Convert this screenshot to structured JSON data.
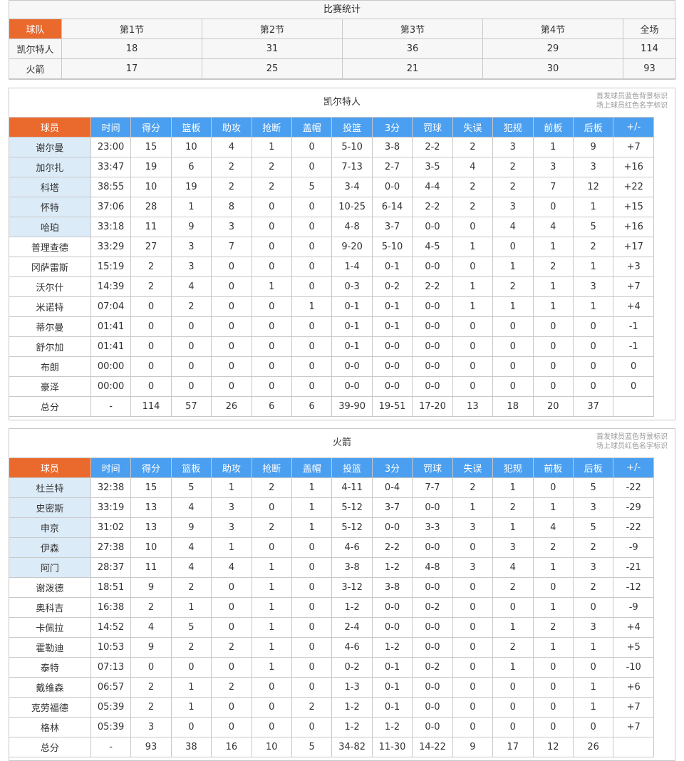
{
  "summary": {
    "title": "比赛统计",
    "headers": [
      "球队",
      "第1节",
      "第2节",
      "第3节",
      "第4节",
      "全场"
    ],
    "rows": [
      [
        "凯尔特人",
        "18",
        "31",
        "36",
        "29",
        "114"
      ],
      [
        "火箭",
        "17",
        "25",
        "21",
        "30",
        "93"
      ]
    ]
  },
  "legend": {
    "line1": "首发球员蓝色背景标识",
    "line2": "场上球员红色名字标识"
  },
  "columns": [
    "球员",
    "时间",
    "得分",
    "篮板",
    "助攻",
    "抢断",
    "盖帽",
    "投篮",
    "3分",
    "罚球",
    "失误",
    "犯规",
    "前板",
    "后板",
    "+/-"
  ],
  "colors": {
    "orange": "#ea6a2e",
    "blue": "#4b9ff0",
    "starter_bg": "#dcebf8"
  },
  "teams": [
    {
      "name": "凯尔特人",
      "starters": 5,
      "players": [
        [
          "谢尔曼",
          "23:00",
          "15",
          "10",
          "4",
          "1",
          "0",
          "5-10",
          "3-8",
          "2-2",
          "2",
          "3",
          "1",
          "9",
          "+7"
        ],
        [
          "加尔扎",
          "33:47",
          "19",
          "6",
          "2",
          "2",
          "0",
          "7-13",
          "2-7",
          "3-5",
          "4",
          "2",
          "3",
          "3",
          "+16"
        ],
        [
          "科塔",
          "38:55",
          "10",
          "19",
          "2",
          "2",
          "5",
          "3-4",
          "0-0",
          "4-4",
          "2",
          "2",
          "7",
          "12",
          "+22"
        ],
        [
          "怀特",
          "37:06",
          "28",
          "1",
          "8",
          "0",
          "0",
          "10-25",
          "6-14",
          "2-2",
          "2",
          "3",
          "0",
          "1",
          "+15"
        ],
        [
          "哈珀",
          "33:18",
          "11",
          "9",
          "3",
          "0",
          "0",
          "4-8",
          "3-7",
          "0-0",
          "0",
          "4",
          "4",
          "5",
          "+16"
        ],
        [
          "普理查德",
          "33:29",
          "27",
          "3",
          "7",
          "0",
          "0",
          "9-20",
          "5-10",
          "4-5",
          "1",
          "0",
          "1",
          "2",
          "+17"
        ],
        [
          "冈萨雷斯",
          "15:19",
          "2",
          "3",
          "0",
          "0",
          "0",
          "1-4",
          "0-1",
          "0-0",
          "0",
          "1",
          "2",
          "1",
          "+3"
        ],
        [
          "沃尔什",
          "14:39",
          "2",
          "4",
          "0",
          "1",
          "0",
          "0-3",
          "0-2",
          "2-2",
          "1",
          "2",
          "1",
          "3",
          "+7"
        ],
        [
          "米诺特",
          "07:04",
          "0",
          "2",
          "0",
          "0",
          "1",
          "0-1",
          "0-1",
          "0-0",
          "1",
          "1",
          "1",
          "1",
          "+4"
        ],
        [
          "蒂尔曼",
          "01:41",
          "0",
          "0",
          "0",
          "0",
          "0",
          "0-1",
          "0-1",
          "0-0",
          "0",
          "0",
          "0",
          "0",
          "-1"
        ],
        [
          "舒尔加",
          "01:41",
          "0",
          "0",
          "0",
          "0",
          "0",
          "0-1",
          "0-0",
          "0-0",
          "0",
          "0",
          "0",
          "0",
          "-1"
        ],
        [
          "布朗",
          "00:00",
          "0",
          "0",
          "0",
          "0",
          "0",
          "0-0",
          "0-0",
          "0-0",
          "0",
          "0",
          "0",
          "0",
          "0"
        ],
        [
          "豪泽",
          "00:00",
          "0",
          "0",
          "0",
          "0",
          "0",
          "0-0",
          "0-0",
          "0-0",
          "0",
          "0",
          "0",
          "0",
          "0"
        ]
      ],
      "total": [
        "总分",
        "-",
        "114",
        "57",
        "26",
        "6",
        "6",
        "39-90",
        "19-51",
        "17-20",
        "13",
        "18",
        "20",
        "37",
        ""
      ]
    },
    {
      "name": "火箭",
      "starters": 5,
      "players": [
        [
          "杜兰特",
          "32:38",
          "15",
          "5",
          "1",
          "2",
          "1",
          "4-11",
          "0-4",
          "7-7",
          "2",
          "1",
          "0",
          "5",
          "-22"
        ],
        [
          "史密斯",
          "33:19",
          "13",
          "4",
          "3",
          "0",
          "1",
          "5-12",
          "3-7",
          "0-0",
          "1",
          "2",
          "1",
          "3",
          "-29"
        ],
        [
          "申京",
          "31:02",
          "13",
          "9",
          "3",
          "2",
          "1",
          "5-12",
          "0-0",
          "3-3",
          "3",
          "1",
          "4",
          "5",
          "-22"
        ],
        [
          "伊森",
          "27:38",
          "10",
          "4",
          "1",
          "0",
          "0",
          "4-6",
          "2-2",
          "0-0",
          "0",
          "3",
          "2",
          "2",
          "-9"
        ],
        [
          "阿门",
          "28:37",
          "11",
          "4",
          "4",
          "1",
          "0",
          "3-8",
          "1-2",
          "4-8",
          "3",
          "4",
          "1",
          "3",
          "-21"
        ],
        [
          "谢泼德",
          "18:51",
          "9",
          "2",
          "0",
          "1",
          "0",
          "3-12",
          "3-8",
          "0-0",
          "0",
          "2",
          "0",
          "2",
          "-12"
        ],
        [
          "奥科吉",
          "16:38",
          "2",
          "1",
          "0",
          "1",
          "0",
          "1-2",
          "0-0",
          "0-2",
          "0",
          "0",
          "1",
          "0",
          "-9"
        ],
        [
          "卡佩拉",
          "14:52",
          "4",
          "5",
          "0",
          "1",
          "0",
          "2-4",
          "0-0",
          "0-0",
          "0",
          "1",
          "2",
          "3",
          "+4"
        ],
        [
          "霍勒迪",
          "10:53",
          "9",
          "2",
          "2",
          "1",
          "0",
          "4-6",
          "1-2",
          "0-0",
          "0",
          "2",
          "1",
          "1",
          "+5"
        ],
        [
          "泰特",
          "07:13",
          "0",
          "0",
          "0",
          "1",
          "0",
          "0-2",
          "0-1",
          "0-2",
          "0",
          "1",
          "0",
          "0",
          "-10"
        ],
        [
          "戴维森",
          "06:57",
          "2",
          "1",
          "2",
          "0",
          "0",
          "1-3",
          "0-1",
          "0-0",
          "0",
          "0",
          "0",
          "1",
          "+6"
        ],
        [
          "克劳福德",
          "05:39",
          "2",
          "1",
          "0",
          "0",
          "2",
          "1-2",
          "0-1",
          "0-0",
          "0",
          "0",
          "0",
          "1",
          "+7"
        ],
        [
          "格林",
          "05:39",
          "3",
          "0",
          "0",
          "0",
          "0",
          "1-2",
          "1-2",
          "0-0",
          "0",
          "0",
          "0",
          "0",
          "+7"
        ]
      ],
      "total": [
        "总分",
        "-",
        "93",
        "38",
        "16",
        "10",
        "5",
        "34-82",
        "11-30",
        "14-22",
        "9",
        "17",
        "12",
        "26",
        ""
      ]
    }
  ]
}
